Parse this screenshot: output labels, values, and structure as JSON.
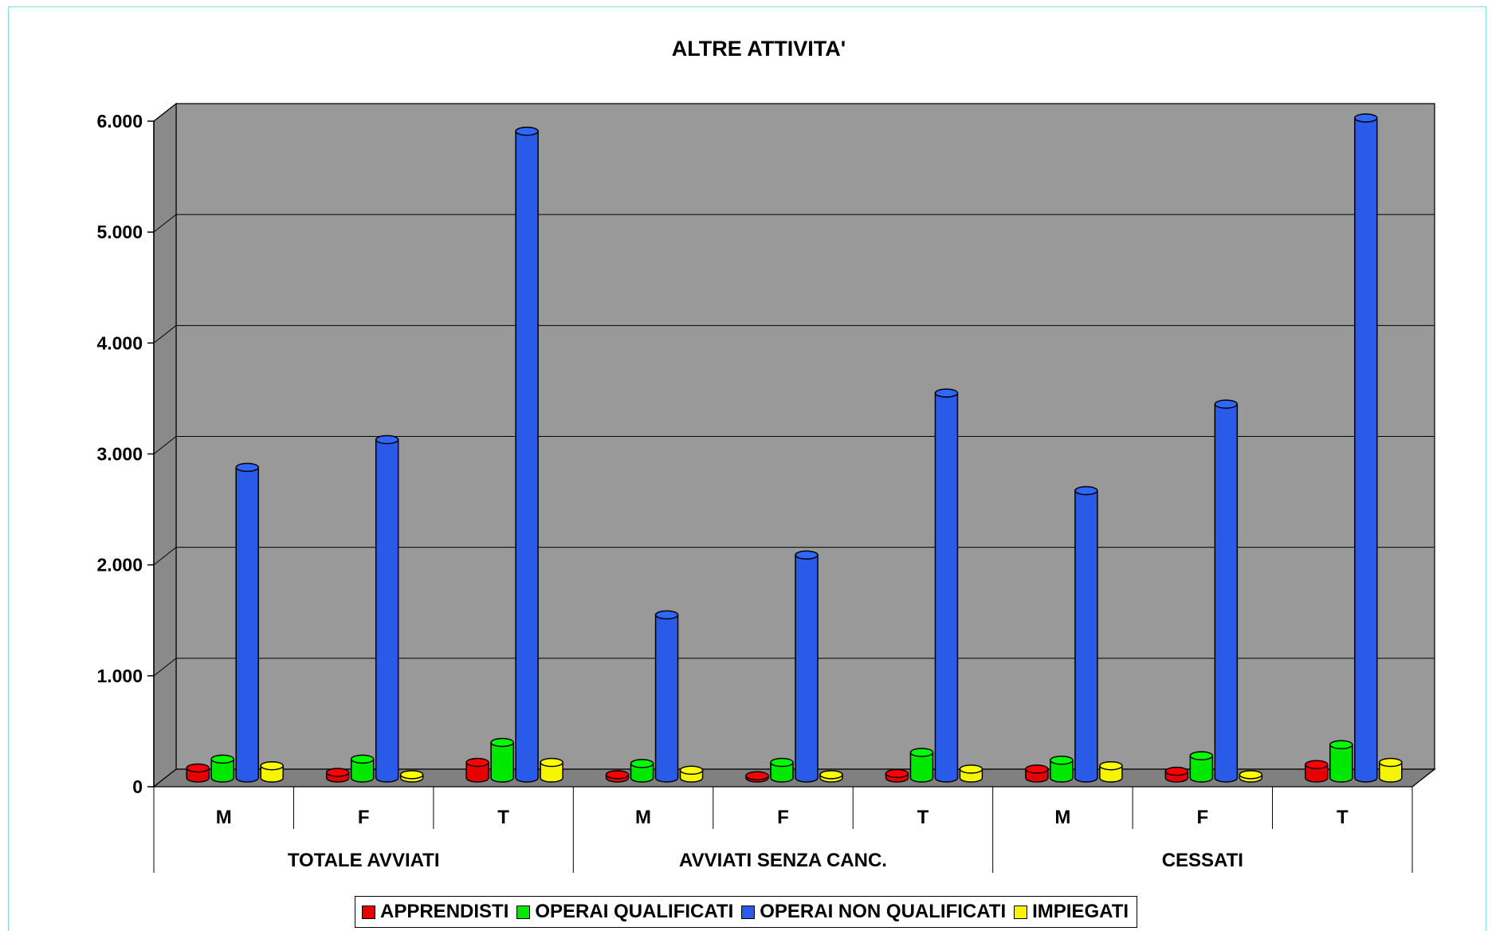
{
  "chart_data": {
    "type": "bar",
    "title": "ALTRE ATTIVITA'",
    "ylim": [
      0,
      6000
    ],
    "yticks": [
      "0",
      "1.000",
      "2.000",
      "3.000",
      "4.000",
      "5.000",
      "6.000"
    ],
    "ytick_values": [
      0,
      1000,
      2000,
      3000,
      4000,
      5000,
      6000
    ],
    "groups": [
      "TOTALE AVVIATI",
      "AVVIATI SENZA CANC.",
      "CESSATI"
    ],
    "categories": [
      "M",
      "F",
      "T",
      "M",
      "F",
      "T",
      "M",
      "F",
      "T"
    ],
    "grid": true,
    "legend_position": "bottom",
    "series": [
      {
        "name": "APPRENDISTI",
        "color": "#e80000",
        "values": [
          90,
          50,
          140,
          30,
          20,
          40,
          80,
          60,
          120
        ]
      },
      {
        "name": "OPERAI QUALIFICATI",
        "color": "#00e800",
        "values": [
          170,
          170,
          320,
          130,
          140,
          230,
          160,
          200,
          300
        ]
      },
      {
        "name": "OPERAI NON QUALIFICATI",
        "color": "#2a5ae8",
        "values": [
          2800,
          3050,
          5830,
          1470,
          2010,
          3470,
          2590,
          3370,
          5950
        ]
      },
      {
        "name": "IMPIEGATI",
        "color": "#f5f500",
        "values": [
          110,
          30,
          140,
          70,
          30,
          80,
          110,
          30,
          140
        ]
      }
    ]
  }
}
